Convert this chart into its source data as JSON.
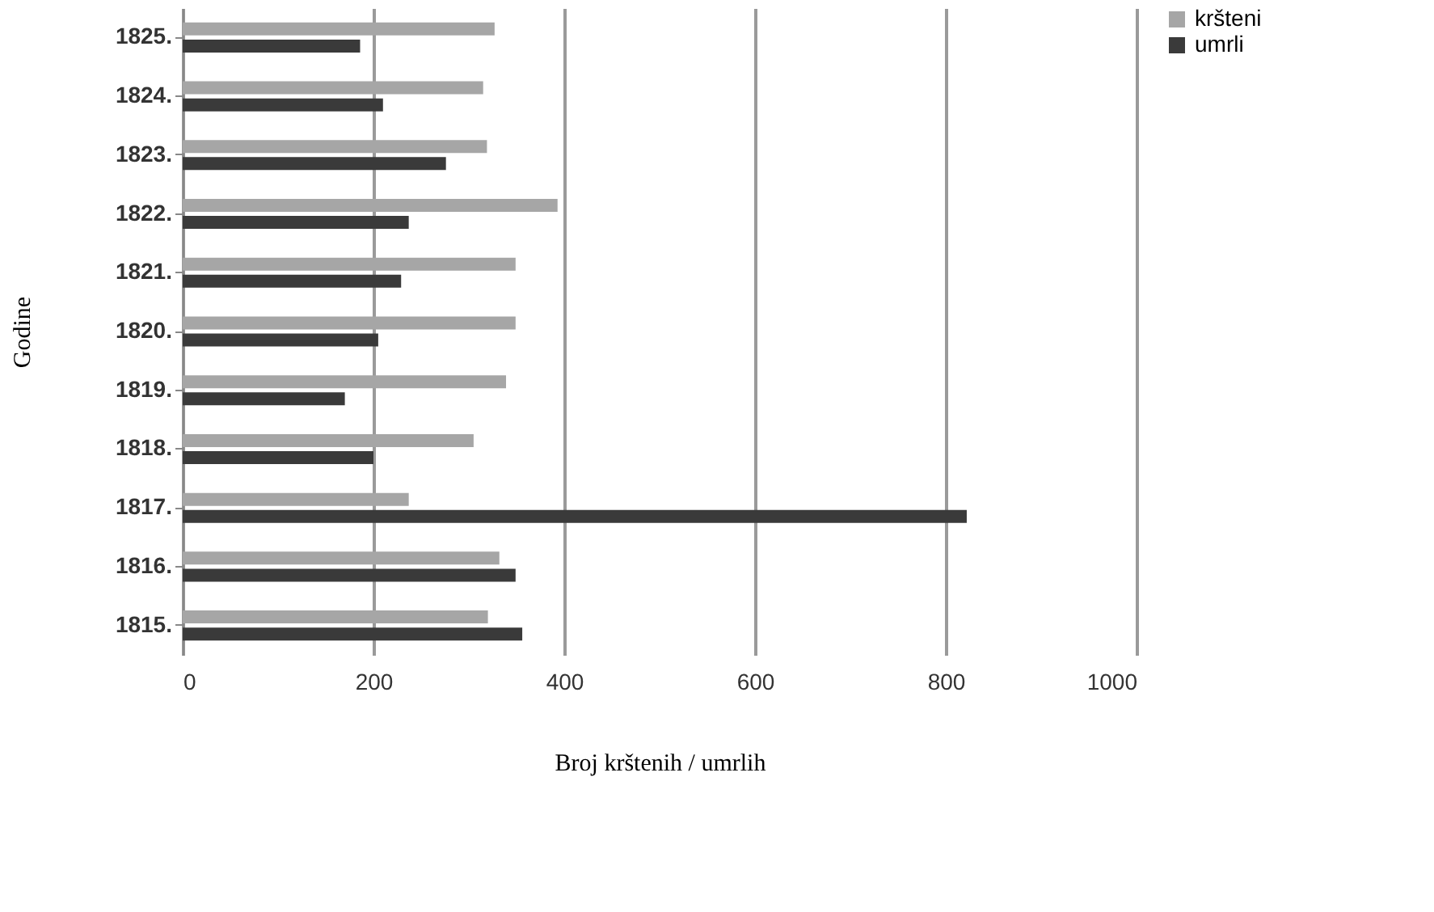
{
  "chart_data": {
    "type": "bar",
    "orientation": "horizontal",
    "xlabel": "Broj krštenih / umrlih",
    "ylabel": "Godine",
    "categories": [
      "1825.",
      "1824.",
      "1823.",
      "1822.",
      "1821.",
      "1820.",
      "1819.",
      "1818.",
      "1817.",
      "1816.",
      "1815."
    ],
    "series": [
      {
        "name": "kršteni",
        "color": "#a6a6a6",
        "values": [
          327,
          315,
          319,
          393,
          349,
          349,
          339,
          305,
          237,
          332,
          320
        ]
      },
      {
        "name": "umrli",
        "color": "#3a3a3a",
        "values": [
          186,
          210,
          276,
          237,
          229,
          205,
          170,
          200,
          822,
          349,
          356
        ]
      }
    ],
    "xlim": [
      0,
      1000
    ],
    "xticks": [
      0,
      200,
      400,
      600,
      800,
      1000
    ],
    "grid": "x",
    "legend": "right"
  }
}
